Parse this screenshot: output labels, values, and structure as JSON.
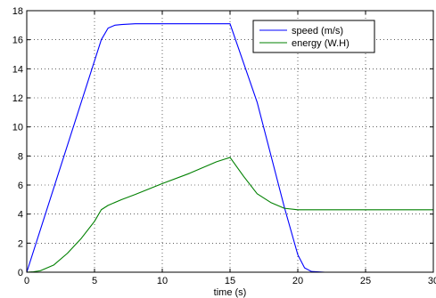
{
  "chart_data": {
    "type": "line",
    "title": "",
    "xlabel": "time (s)",
    "ylabel": "",
    "xlim": [
      0,
      30
    ],
    "ylim": [
      0,
      18
    ],
    "xticks": [
      0,
      5,
      10,
      15,
      20,
      25,
      30
    ],
    "yticks": [
      0,
      2,
      4,
      6,
      8,
      10,
      12,
      14,
      16,
      18
    ],
    "grid": true,
    "legend_position": "top-right",
    "series": [
      {
        "name": "speed (m/s)",
        "color": "#0000ff",
        "x": [
          0,
          5.5,
          6.0,
          6.5,
          7.0,
          8.0,
          10.0,
          15.0,
          17.0,
          19.0,
          20.0,
          20.5,
          21.0,
          22.0,
          30.0
        ],
        "y": [
          0,
          16.0,
          16.8,
          17.0,
          17.05,
          17.1,
          17.1,
          17.1,
          11.7,
          4.5,
          1.2,
          0.3,
          0.05,
          0,
          0
        ]
      },
      {
        "name": "energy (W.H)",
        "color": "#008000",
        "x": [
          0,
          0.5,
          1.0,
          2.0,
          3.0,
          4.0,
          5.0,
          5.5,
          6.0,
          7.0,
          8.0,
          10.0,
          12.0,
          14.0,
          15.0,
          16.0,
          17.0,
          18.0,
          19.0,
          20.0,
          21.0,
          25.0,
          30.0
        ],
        "y": [
          0,
          0.03,
          0.1,
          0.5,
          1.3,
          2.3,
          3.5,
          4.3,
          4.6,
          5.0,
          5.35,
          6.1,
          6.8,
          7.6,
          7.9,
          6.6,
          5.4,
          4.8,
          4.4,
          4.3,
          4.3,
          4.3,
          4.3
        ]
      }
    ]
  }
}
